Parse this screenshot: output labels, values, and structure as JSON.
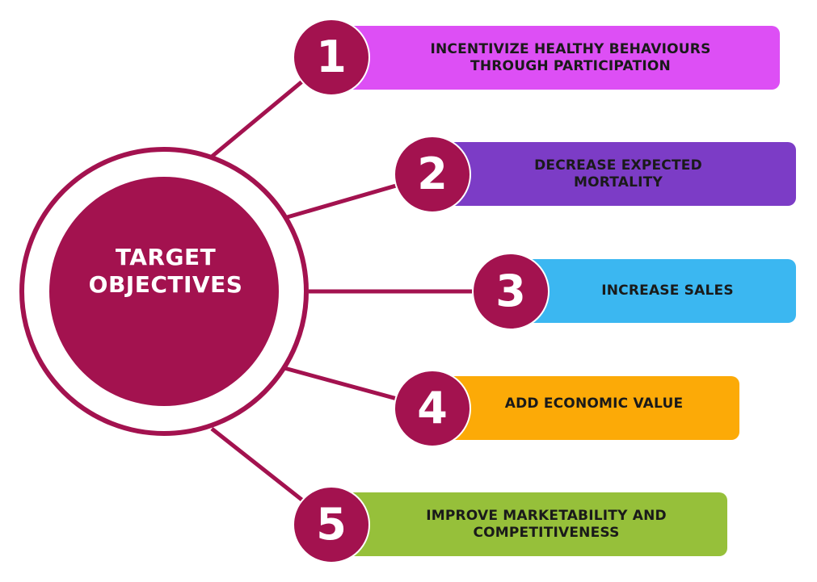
{
  "center": {
    "line1": "TARGET",
    "line2": "OBJECTIVES",
    "color": "#a3124f"
  },
  "objectives": [
    {
      "number": "1",
      "line1": "INCENTIVIZE HEALTHY BEHAVIOURS",
      "line2": "THROUGH PARTICIPATION",
      "color": "#dd4ff5"
    },
    {
      "number": "2",
      "line1": "DECREASE EXPECTED",
      "line2": "MORTALITY",
      "color": "#7c3cc6"
    },
    {
      "number": "3",
      "line1": "INCREASE SALES",
      "line2": "",
      "color": "#3bb7f1"
    },
    {
      "number": "4",
      "line1": "ADD ECONOMIC VALUE",
      "line2": "",
      "color": "#fcaa07"
    },
    {
      "number": "5",
      "line1": "IMPROVE MARKETABILITY AND",
      "line2": "COMPETITIVENESS",
      "color": "#96c03a"
    }
  ]
}
